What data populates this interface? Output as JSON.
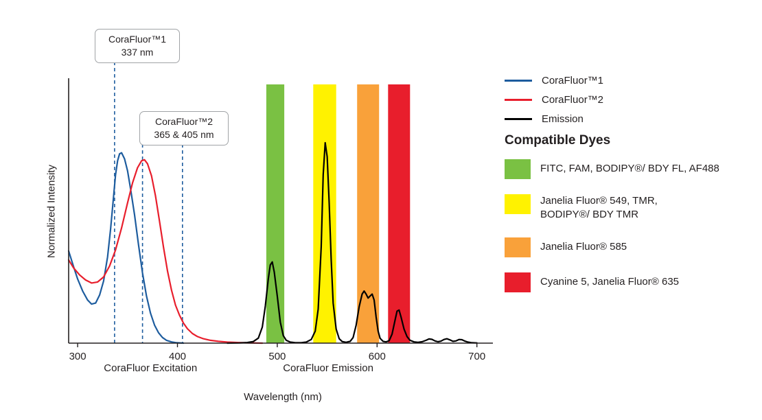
{
  "chart_data": {
    "type": "line",
    "title": "",
    "xlabel": "Wavelength (nm)",
    "ylabel": "Normalized Intensity",
    "xlim": [
      291,
      716
    ],
    "ylim": [
      0,
      1.3
    ],
    "x_ticks": [
      300,
      400,
      500,
      600,
      700
    ],
    "grid": false,
    "legend_position": "right",
    "axis_section_labels": [
      {
        "label": "CoraFluor Excitation",
        "center_nm": 373
      },
      {
        "label": "CoraFluor Emission",
        "center_nm": 551
      }
    ],
    "dashed_lines_nm": [
      337,
      365,
      405
    ],
    "dashed_line_color": "#1d5c9e",
    "annotations": [
      {
        "line1": "CoraFluor™1",
        "line2": "337 nm",
        "marker_nm": [
          337
        ]
      },
      {
        "line1": "CoraFluor™2",
        "line2": "365 & 405 nm",
        "marker_nm": [
          365,
          405
        ]
      }
    ],
    "bands": [
      {
        "name": "green-band",
        "color": "#7ac143",
        "from_nm": 489,
        "to_nm": 507
      },
      {
        "name": "yellow-band",
        "color": "#fff200",
        "from_nm": 536,
        "to_nm": 559
      },
      {
        "name": "orange-band",
        "color": "#f9a13a",
        "from_nm": 580,
        "to_nm": 602
      },
      {
        "name": "red-band",
        "color": "#e81e2c",
        "from_nm": 611,
        "to_nm": 633
      }
    ],
    "series": [
      {
        "name": "CoraFluor™1",
        "key": "corafluor1-excitation",
        "color": "#1d5c9e",
        "points": [
          [
            291,
            0.46
          ],
          [
            296,
            0.38
          ],
          [
            300,
            0.32
          ],
          [
            305,
            0.26
          ],
          [
            310,
            0.215
          ],
          [
            314,
            0.195
          ],
          [
            318,
            0.2
          ],
          [
            322,
            0.24
          ],
          [
            326,
            0.31
          ],
          [
            330,
            0.43
          ],
          [
            333,
            0.57
          ],
          [
            336,
            0.73
          ],
          [
            338,
            0.84
          ],
          [
            340,
            0.91
          ],
          [
            342,
            0.945
          ],
          [
            344,
            0.95
          ],
          [
            347,
            0.92
          ],
          [
            350,
            0.86
          ],
          [
            353,
            0.77
          ],
          [
            357,
            0.64
          ],
          [
            361,
            0.49
          ],
          [
            365,
            0.35
          ],
          [
            369,
            0.235
          ],
          [
            373,
            0.15
          ],
          [
            377,
            0.09
          ],
          [
            381,
            0.052
          ],
          [
            385,
            0.028
          ],
          [
            389,
            0.014
          ],
          [
            394,
            0.006
          ],
          [
            399,
            0.002
          ],
          [
            406,
            0
          ]
        ]
      },
      {
        "name": "CoraFluor™2",
        "key": "corafluor2-excitation",
        "color": "#e81e2c",
        "points": [
          [
            291,
            0.415
          ],
          [
            296,
            0.375
          ],
          [
            302,
            0.34
          ],
          [
            308,
            0.315
          ],
          [
            314,
            0.3
          ],
          [
            320,
            0.305
          ],
          [
            326,
            0.33
          ],
          [
            332,
            0.385
          ],
          [
            338,
            0.465
          ],
          [
            344,
            0.575
          ],
          [
            350,
            0.7
          ],
          [
            355,
            0.8
          ],
          [
            360,
            0.875
          ],
          [
            364,
            0.91
          ],
          [
            367,
            0.915
          ],
          [
            370,
            0.895
          ],
          [
            374,
            0.835
          ],
          [
            378,
            0.735
          ],
          [
            382,
            0.61
          ],
          [
            386,
            0.48
          ],
          [
            390,
            0.36
          ],
          [
            394,
            0.265
          ],
          [
            398,
            0.19
          ],
          [
            402,
            0.14
          ],
          [
            406,
            0.1
          ],
          [
            410,
            0.072
          ],
          [
            415,
            0.048
          ],
          [
            420,
            0.033
          ],
          [
            426,
            0.022
          ],
          [
            433,
            0.014
          ],
          [
            441,
            0.009
          ],
          [
            450,
            0.005
          ],
          [
            460,
            0.003
          ],
          [
            472,
            0.0015
          ],
          [
            485,
            0
          ]
        ]
      },
      {
        "name": "Emission",
        "key": "emission",
        "color": "#000000",
        "points": [
          [
            450,
            0
          ],
          [
            462,
            0.001
          ],
          [
            470,
            0.003
          ],
          [
            476,
            0.008
          ],
          [
            481,
            0.025
          ],
          [
            485,
            0.08
          ],
          [
            488,
            0.185
          ],
          [
            491,
            0.32
          ],
          [
            493,
            0.39
          ],
          [
            495,
            0.405
          ],
          [
            497,
            0.355
          ],
          [
            500,
            0.235
          ],
          [
            503,
            0.105
          ],
          [
            506,
            0.038
          ],
          [
            509,
            0.014
          ],
          [
            513,
            0.005
          ],
          [
            518,
            0.002
          ],
          [
            524,
            0.002
          ],
          [
            529,
            0.005
          ],
          [
            534,
            0.018
          ],
          [
            538,
            0.06
          ],
          [
            541,
            0.17
          ],
          [
            544,
            0.48
          ],
          [
            546,
            0.84
          ],
          [
            548,
            1.0
          ],
          [
            550,
            0.93
          ],
          [
            552,
            0.7
          ],
          [
            554,
            0.42
          ],
          [
            556,
            0.2
          ],
          [
            559,
            0.07
          ],
          [
            562,
            0.022
          ],
          [
            565,
            0.008
          ],
          [
            569,
            0.004
          ],
          [
            573,
            0.009
          ],
          [
            576,
            0.028
          ],
          [
            579,
            0.09
          ],
          [
            582,
            0.18
          ],
          [
            585,
            0.245
          ],
          [
            587,
            0.26
          ],
          [
            589,
            0.245
          ],
          [
            591,
            0.225
          ],
          [
            593,
            0.235
          ],
          [
            595,
            0.245
          ],
          [
            597,
            0.215
          ],
          [
            599,
            0.13
          ],
          [
            601,
            0.06
          ],
          [
            603,
            0.024
          ],
          [
            606,
            0.009
          ],
          [
            609,
            0.006
          ],
          [
            612,
            0.012
          ],
          [
            615,
            0.045
          ],
          [
            618,
            0.115
          ],
          [
            620,
            0.16
          ],
          [
            622,
            0.165
          ],
          [
            624,
            0.13
          ],
          [
            627,
            0.07
          ],
          [
            630,
            0.033
          ],
          [
            633,
            0.014
          ],
          [
            637,
            0.006
          ],
          [
            641,
            0.004
          ],
          [
            645,
            0.007
          ],
          [
            649,
            0.014
          ],
          [
            652,
            0.021
          ],
          [
            655,
            0.019
          ],
          [
            658,
            0.011
          ],
          [
            661,
            0.007
          ],
          [
            664,
            0.01
          ],
          [
            667,
            0.018
          ],
          [
            670,
            0.022
          ],
          [
            673,
            0.016
          ],
          [
            676,
            0.009
          ],
          [
            679,
            0.011
          ],
          [
            682,
            0.018
          ],
          [
            685,
            0.017
          ],
          [
            688,
            0.01
          ],
          [
            691,
            0.005
          ],
          [
            695,
            0.002
          ],
          [
            700,
            0.001
          ]
        ]
      }
    ]
  },
  "legend": {
    "series": [
      {
        "label": "CoraFluor™1",
        "color": "#1d5c9e"
      },
      {
        "label": "CoraFluor™2",
        "color": "#e81e2c"
      },
      {
        "label": "Emission",
        "color": "#000000"
      }
    ],
    "compatible_dyes_title": "Compatible Dyes",
    "dyes": [
      {
        "color": "#7ac143",
        "label": "FITC, FAM, BODIPY®/ BDY FL, AF488"
      },
      {
        "color": "#fff200",
        "label": "Janelia Fluor® 549, TMR,\nBODIPY®/ BDY TMR"
      },
      {
        "color": "#f9a13a",
        "label": "Janelia Fluor® 585"
      },
      {
        "color": "#e81e2c",
        "label": "Cyanine 5, Janelia Fluor® 635"
      }
    ]
  }
}
